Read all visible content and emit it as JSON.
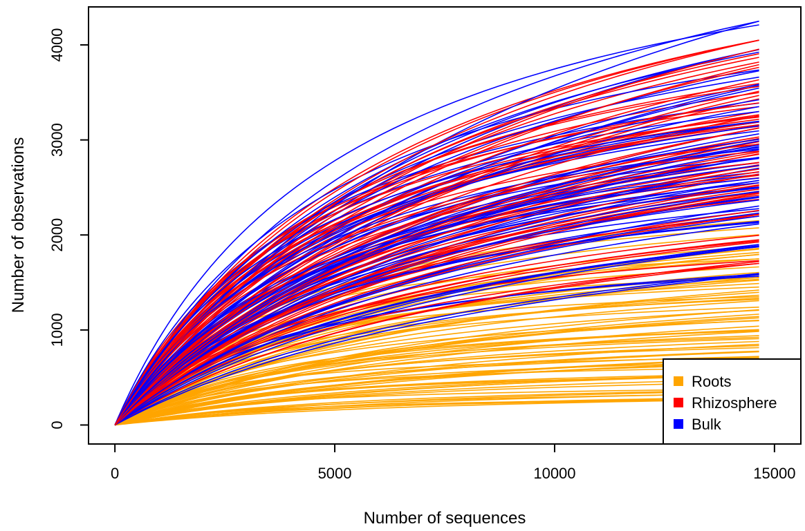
{
  "chart_data": {
    "type": "line",
    "title": "",
    "xlabel": "Number of sequences",
    "ylabel": "Number of observations",
    "xlim": [
      -600,
      15600
    ],
    "ylim": [
      -200,
      4400
    ],
    "xticks": [
      "0",
      "5000",
      "10000",
      "15000"
    ],
    "yticks": [
      "0",
      "1000",
      "2000",
      "3000",
      "4000"
    ],
    "x_max": 14650,
    "grid": false,
    "legend_position": "bottom-right",
    "series_groups": [
      {
        "name": "Roots",
        "color": "#FFA500",
        "n_curves": 75,
        "end_values_range": [
          270,
          2150
        ],
        "representative_end_values": [
          270,
          300,
          340,
          380,
          420,
          460,
          500,
          540,
          580,
          620,
          650,
          690,
          720,
          760,
          800,
          850,
          900,
          950,
          1000,
          1050,
          1100,
          1150,
          1200,
          1250,
          1300,
          1350,
          1400,
          1450,
          1500,
          1550,
          1600,
          1650,
          1700,
          1750,
          1800,
          1850,
          1950,
          2050,
          2150
        ]
      },
      {
        "name": "Rhizosphere",
        "color": "#FF0000",
        "n_curves": 70,
        "end_values_range": [
          1700,
          4050
        ],
        "representative_end_values": [
          1700,
          1950,
          2250,
          2400,
          2500,
          2600,
          2700,
          2800,
          2900,
          3000,
          3100,
          3200,
          3300,
          3400,
          3500,
          3600,
          3800,
          3900,
          4050
        ]
      },
      {
        "name": "Bulk",
        "color": "#0000FF",
        "n_curves": 70,
        "end_values_range": [
          1550,
          4250
        ],
        "representative_end_values": [
          1550,
          1850,
          2100,
          2250,
          2350,
          2450,
          2550,
          2650,
          2750,
          2850,
          2950,
          3050,
          3150,
          3250,
          3400,
          3550,
          3700,
          3900,
          4250
        ]
      }
    ]
  }
}
